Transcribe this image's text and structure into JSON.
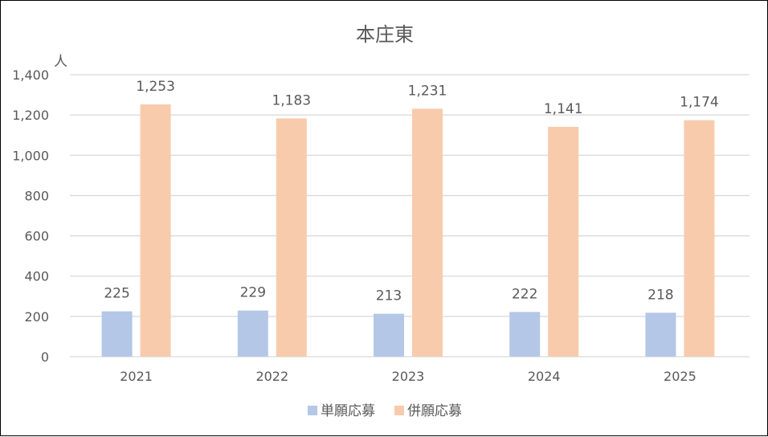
{
  "chart_data": {
    "type": "bar",
    "title": "本庄東",
    "ylabel": "人",
    "xlabel": "",
    "categories": [
      "2021",
      "2022",
      "2023",
      "2024",
      "2025"
    ],
    "series": [
      {
        "name": "単願応募",
        "values": [
          225,
          229,
          213,
          222,
          218
        ],
        "labels": [
          "225",
          "229",
          "213",
          "222",
          "218"
        ],
        "color": "#b4c7e7"
      },
      {
        "name": "併願応募",
        "values": [
          1253,
          1183,
          1231,
          1141,
          1174
        ],
        "labels": [
          "1,253",
          "1,183",
          "1,231",
          "1,141",
          "1,174"
        ],
        "color": "#f8cbad"
      }
    ],
    "ylim": [
      0,
      1400
    ],
    "yticks": [
      0,
      200,
      400,
      600,
      800,
      1000,
      1200,
      1400
    ],
    "ytick_labels": [
      "0",
      "200",
      "400",
      "600",
      "800",
      "1,000",
      "1,200",
      "1,400"
    ],
    "grid": true,
    "legend": "bottom"
  }
}
